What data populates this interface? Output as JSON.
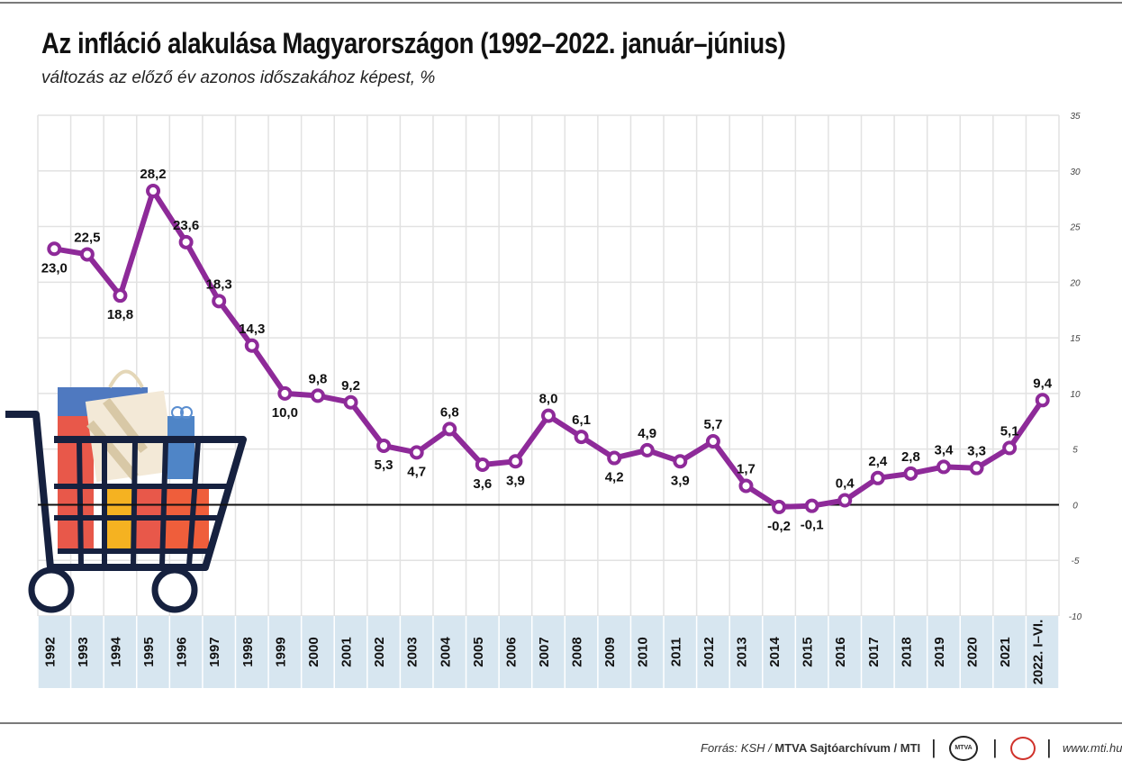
{
  "title": "Az infláció alakulása Magyarországon (1992–2022. január–június)",
  "subtitle": "változás az előző év azonos időszakához képest, %",
  "footer": {
    "source_prefix": "Forrás: KSH / ",
    "source_bold": "MTVA Sajtóarchívum / MTI",
    "logo_text": "MTVA",
    "website": "www.mti.hu"
  },
  "colors": {
    "line": "#8e2a99",
    "grid": "#e2e2e2",
    "axis_band": "#d7e6f0",
    "zero_line": "#111111"
  },
  "chart_data": {
    "type": "line",
    "categories": [
      "1992",
      "1993",
      "1994",
      "1995",
      "1996",
      "1997",
      "1998",
      "1999",
      "2000",
      "2001",
      "2002",
      "2003",
      "2004",
      "2005",
      "2006",
      "2007",
      "2008",
      "2009",
      "2010",
      "2011",
      "2012",
      "2013",
      "2014",
      "2015",
      "2016",
      "2017",
      "2018",
      "2019",
      "2020",
      "2021",
      "2022. I–VI."
    ],
    "values": [
      23.0,
      22.5,
      18.8,
      28.2,
      23.6,
      18.3,
      14.3,
      10.0,
      9.8,
      9.2,
      5.3,
      4.7,
      6.8,
      3.6,
      3.9,
      8.0,
      6.1,
      4.2,
      4.9,
      3.9,
      5.7,
      1.7,
      -0.2,
      -0.1,
      0.4,
      2.4,
      2.8,
      3.4,
      3.3,
      5.1,
      9.4
    ],
    "labels": [
      "23,0",
      "22,5",
      "18,8",
      "28,2",
      "23,6",
      "18,3",
      "14,3",
      "10,0",
      "9,8",
      "9,2",
      "5,3",
      "4,7",
      "6,8",
      "3,6",
      "3,9",
      "8,0",
      "6,1",
      "4,2",
      "4,9",
      "3,9",
      "5,7",
      "1,7",
      "-0,2",
      "-0,1",
      "0,4",
      "2,4",
      "2,8",
      "3,4",
      "3,3",
      "5,1",
      "9,4"
    ],
    "label_position": [
      "below",
      "above",
      "below",
      "above",
      "above",
      "above",
      "above",
      "below",
      "above",
      "above",
      "below",
      "below",
      "above",
      "below",
      "below",
      "above",
      "above",
      "below",
      "above",
      "below",
      "above",
      "above",
      "below",
      "below",
      "above",
      "above",
      "above",
      "above",
      "above",
      "above",
      "above"
    ],
    "y_ticks": [
      35,
      30,
      25,
      20,
      15,
      10,
      5,
      0,
      -5,
      -10
    ],
    "ylim": [
      -10,
      35
    ],
    "y_axis_side": "right",
    "grid": true
  }
}
